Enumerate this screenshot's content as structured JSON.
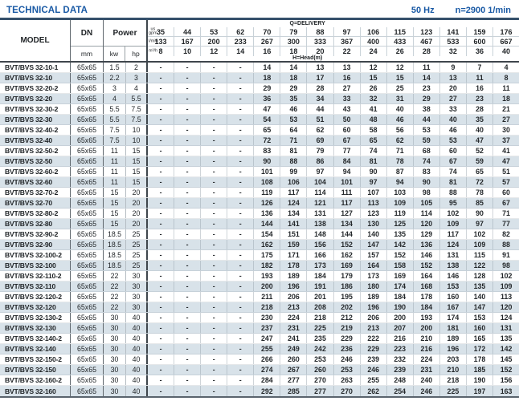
{
  "title": "TECHNICAL DATA",
  "frequency": "50 Hz",
  "speed": "n=2900 1/min",
  "table": {
    "model_header": "MODEL",
    "dn_header": "DN",
    "dn_unit": "mm",
    "power_header": "Power",
    "power_units": [
      "kw",
      "hp"
    ],
    "delivery_header": "Q=DELIVERY",
    "head_label": "H=Head(m)",
    "unit_rows": [
      {
        "label": "us\ngpm",
        "values": [
          "35",
          "44",
          "53",
          "62",
          "70",
          "79",
          "88",
          "97",
          "106",
          "115",
          "123",
          "141",
          "159",
          "176"
        ]
      },
      {
        "label": "l/min",
        "values": [
          "133",
          "167",
          "200",
          "233",
          "267",
          "300",
          "333",
          "367",
          "400",
          "433",
          "467",
          "533",
          "600",
          "667"
        ]
      },
      {
        "label": "m³/h",
        "values": [
          "8",
          "10",
          "12",
          "14",
          "16",
          "18",
          "20",
          "22",
          "24",
          "26",
          "28",
          "32",
          "36",
          "40"
        ]
      }
    ],
    "rows": [
      {
        "model": "BVT/BVS 32-10-1",
        "dn": "65x65",
        "kw": "1.5",
        "hp": "2",
        "heads": [
          "-",
          "-",
          "-",
          "-",
          "14",
          "14",
          "13",
          "13",
          "12",
          "12",
          "11",
          "9",
          "7",
          "4"
        ]
      },
      {
        "model": "BVT/BVS 32-10",
        "dn": "65x65",
        "kw": "2.2",
        "hp": "3",
        "heads": [
          "-",
          "-",
          "-",
          "-",
          "18",
          "18",
          "17",
          "16",
          "15",
          "15",
          "14",
          "13",
          "11",
          "8"
        ]
      },
      {
        "model": "BVT/BVS 32-20-2",
        "dn": "65x65",
        "kw": "3",
        "hp": "4",
        "heads": [
          "-",
          "-",
          "-",
          "-",
          "29",
          "29",
          "28",
          "27",
          "26",
          "25",
          "23",
          "20",
          "16",
          "11"
        ]
      },
      {
        "model": "BVT/BVS 32-20",
        "dn": "65x65",
        "kw": "4",
        "hp": "5.5",
        "heads": [
          "-",
          "-",
          "-",
          "-",
          "36",
          "35",
          "34",
          "33",
          "32",
          "31",
          "29",
          "27",
          "23",
          "18"
        ]
      },
      {
        "model": "BVT/BVS 32-30-2",
        "dn": "65x65",
        "kw": "5.5",
        "hp": "7.5",
        "heads": [
          "-",
          "-",
          "-",
          "-",
          "47",
          "46",
          "44",
          "43",
          "41",
          "40",
          "38",
          "33",
          "28",
          "21"
        ]
      },
      {
        "model": "BVT/BVS 32-30",
        "dn": "65x65",
        "kw": "5.5",
        "hp": "7.5",
        "heads": [
          "-",
          "-",
          "-",
          "-",
          "54",
          "53",
          "51",
          "50",
          "48",
          "46",
          "44",
          "40",
          "35",
          "27"
        ]
      },
      {
        "model": "BVT/BVS 32-40-2",
        "dn": "65x65",
        "kw": "7.5",
        "hp": "10",
        "heads": [
          "-",
          "-",
          "-",
          "-",
          "65",
          "64",
          "62",
          "60",
          "58",
          "56",
          "53",
          "46",
          "40",
          "30"
        ]
      },
      {
        "model": "BVT/BVS 32-40",
        "dn": "65x65",
        "kw": "7.5",
        "hp": "10",
        "heads": [
          "-",
          "-",
          "-",
          "-",
          "72",
          "71",
          "69",
          "67",
          "65",
          "62",
          "59",
          "53",
          "47",
          "37"
        ]
      },
      {
        "model": "BVT/BVS 32-50-2",
        "dn": "65x65",
        "kw": "11",
        "hp": "15",
        "heads": [
          "-",
          "-",
          "-",
          "-",
          "83",
          "81",
          "79",
          "77",
          "74",
          "71",
          "68",
          "60",
          "52",
          "41"
        ]
      },
      {
        "model": "BVT/BVS 32-50",
        "dn": "65x65",
        "kw": "11",
        "hp": "15",
        "heads": [
          "-",
          "-",
          "-",
          "-",
          "90",
          "88",
          "86",
          "84",
          "81",
          "78",
          "74",
          "67",
          "59",
          "47"
        ]
      },
      {
        "model": "BVT/BVS 32-60-2",
        "dn": "65x65",
        "kw": "11",
        "hp": "15",
        "heads": [
          "-",
          "-",
          "-",
          "-",
          "101",
          "99",
          "97",
          "94",
          "90",
          "87",
          "83",
          "74",
          "65",
          "51"
        ]
      },
      {
        "model": "BVT/BVS 32-60",
        "dn": "65x65",
        "kw": "11",
        "hp": "15",
        "heads": [
          "-",
          "-",
          "-",
          "-",
          "108",
          "106",
          "104",
          "101",
          "97",
          "94",
          "90",
          "81",
          "72",
          "57"
        ]
      },
      {
        "model": "BVT/BVS 32-70-2",
        "dn": "65x65",
        "kw": "15",
        "hp": "20",
        "heads": [
          "-",
          "-",
          "-",
          "-",
          "119",
          "117",
          "114",
          "111",
          "107",
          "103",
          "98",
          "88",
          "78",
          "60"
        ]
      },
      {
        "model": "BVT/BVS 32-70",
        "dn": "65x65",
        "kw": "15",
        "hp": "20",
        "heads": [
          "-",
          "-",
          "-",
          "-",
          "126",
          "124",
          "121",
          "117",
          "113",
          "109",
          "105",
          "95",
          "85",
          "67"
        ]
      },
      {
        "model": "BVT/BVS 32-80-2",
        "dn": "65x65",
        "kw": "15",
        "hp": "20",
        "heads": [
          "-",
          "-",
          "-",
          "-",
          "136",
          "134",
          "131",
          "127",
          "123",
          "119",
          "114",
          "102",
          "90",
          "71"
        ]
      },
      {
        "model": "BVT/BVS 32-80",
        "dn": "65x65",
        "kw": "15",
        "hp": "20",
        "heads": [
          "-",
          "-",
          "-",
          "-",
          "144",
          "141",
          "138",
          "134",
          "130",
          "125",
          "120",
          "109",
          "97",
          "77"
        ]
      },
      {
        "model": "BVT/BVS 32-90-2",
        "dn": "65x65",
        "kw": "18.5",
        "hp": "25",
        "heads": [
          "-",
          "-",
          "-",
          "-",
          "154",
          "151",
          "148",
          "144",
          "140",
          "135",
          "129",
          "117",
          "102",
          "82"
        ]
      },
      {
        "model": "BVT/BVS 32-90",
        "dn": "65x65",
        "kw": "18.5",
        "hp": "25",
        "heads": [
          "-",
          "-",
          "-",
          "-",
          "162",
          "159",
          "156",
          "152",
          "147",
          "142",
          "136",
          "124",
          "109",
          "88"
        ]
      },
      {
        "model": "BVT/BVS 32-100-2",
        "dn": "65x65",
        "kw": "18.5",
        "hp": "25",
        "heads": [
          "-",
          "-",
          "-",
          "-",
          "175",
          "171",
          "166",
          "162",
          "157",
          "152",
          "146",
          "131",
          "115",
          "91"
        ]
      },
      {
        "model": "BVT/BVS 32-100",
        "dn": "65x65",
        "kw": "18.5",
        "hp": "25",
        "heads": [
          "-",
          "-",
          "-",
          "-",
          "182",
          "178",
          "173",
          "169",
          "164",
          "158",
          "152",
          "138",
          "122",
          "98"
        ]
      },
      {
        "model": "BVT/BVS 32-110-2",
        "dn": "65x65",
        "kw": "22",
        "hp": "30",
        "heads": [
          "-",
          "-",
          "-",
          "-",
          "193",
          "189",
          "184",
          "179",
          "173",
          "169",
          "164",
          "146",
          "128",
          "102"
        ]
      },
      {
        "model": "BVT/BVS 32-110",
        "dn": "65x65",
        "kw": "22",
        "hp": "30",
        "heads": [
          "-",
          "-",
          "-",
          "-",
          "200",
          "196",
          "191",
          "186",
          "180",
          "174",
          "168",
          "153",
          "135",
          "109"
        ]
      },
      {
        "model": "BVT/BVS 32-120-2",
        "dn": "65x65",
        "kw": "22",
        "hp": "30",
        "heads": [
          "-",
          "-",
          "-",
          "-",
          "211",
          "206",
          "201",
          "195",
          "189",
          "184",
          "178",
          "160",
          "140",
          "113"
        ]
      },
      {
        "model": "BVT/BVS 32-120",
        "dn": "65x65",
        "kw": "22",
        "hp": "30",
        "heads": [
          "-",
          "-",
          "-",
          "-",
          "218",
          "213",
          "208",
          "202",
          "196",
          "190",
          "184",
          "167",
          "147",
          "120"
        ]
      },
      {
        "model": "BVT/BVS 32-130-2",
        "dn": "65x65",
        "kw": "30",
        "hp": "40",
        "heads": [
          "-",
          "-",
          "-",
          "-",
          "230",
          "224",
          "218",
          "212",
          "206",
          "200",
          "193",
          "174",
          "153",
          "124"
        ]
      },
      {
        "model": "BVT/BVS 32-130",
        "dn": "65x65",
        "kw": "30",
        "hp": "40",
        "heads": [
          "-",
          "-",
          "-",
          "-",
          "237",
          "231",
          "225",
          "219",
          "213",
          "207",
          "200",
          "181",
          "160",
          "131"
        ]
      },
      {
        "model": "BVT/BVS 32-140-2",
        "dn": "65x65",
        "kw": "30",
        "hp": "40",
        "heads": [
          "-",
          "-",
          "-",
          "-",
          "247",
          "241",
          "235",
          "229",
          "222",
          "216",
          "210",
          "189",
          "165",
          "135"
        ]
      },
      {
        "model": "BVT/BVS 32-140",
        "dn": "65x65",
        "kw": "30",
        "hp": "40",
        "heads": [
          "-",
          "-",
          "-",
          "-",
          "255",
          "249",
          "242",
          "236",
          "229",
          "223",
          "216",
          "196",
          "172",
          "142"
        ]
      },
      {
        "model": "BVT/BVS 32-150-2",
        "dn": "65x65",
        "kw": "30",
        "hp": "40",
        "heads": [
          "-",
          "-",
          "-",
          "-",
          "266",
          "260",
          "253",
          "246",
          "239",
          "232",
          "224",
          "203",
          "178",
          "145"
        ]
      },
      {
        "model": "BVT/BVS 32-150",
        "dn": "65x65",
        "kw": "30",
        "hp": "40",
        "heads": [
          "-",
          "-",
          "-",
          "-",
          "274",
          "267",
          "260",
          "253",
          "246",
          "239",
          "231",
          "210",
          "185",
          "152"
        ]
      },
      {
        "model": "BVT/BVS 32-160-2",
        "dn": "65x65",
        "kw": "30",
        "hp": "40",
        "heads": [
          "-",
          "-",
          "-",
          "-",
          "284",
          "277",
          "270",
          "263",
          "255",
          "248",
          "240",
          "218",
          "190",
          "156"
        ]
      },
      {
        "model": "BVT/BVS 32-160",
        "dn": "65x65",
        "kw": "30",
        "hp": "40",
        "heads": [
          "-",
          "-",
          "-",
          "-",
          "292",
          "285",
          "277",
          "270",
          "262",
          "254",
          "246",
          "225",
          "197",
          "163"
        ]
      }
    ]
  }
}
